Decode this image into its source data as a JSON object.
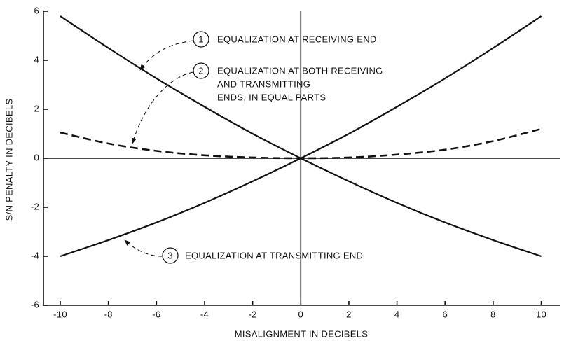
{
  "chart_data": {
    "type": "line",
    "x_label": "MISALIGNMENT IN DECIBELS",
    "y_label": "S/N PENALTY IN DECIBELS",
    "xlim": [
      -10.7,
      10.8
    ],
    "ylim": [
      -6,
      6
    ],
    "xticks": [
      -10,
      -8,
      -6,
      -4,
      -2,
      0,
      2,
      4,
      6,
      8,
      10
    ],
    "yticks": [
      -6,
      -4,
      -2,
      0,
      2,
      4,
      6
    ],
    "color": "#111111",
    "series": [
      {
        "label": "1",
        "text": [
          "EQUALIZATION AT RECEIVING END"
        ],
        "dashed": false,
        "x": [
          -10,
          -8,
          -6,
          -4,
          -2,
          0,
          2,
          4,
          6,
          8,
          10
        ],
        "values": [
          5.8,
          4.5,
          3.26,
          2.1,
          1.0,
          0,
          -0.94,
          -1.82,
          -2.62,
          -3.34,
          -4.0
        ]
      },
      {
        "label": "2",
        "text": [
          "EQUALIZATION AT BOTH RECEIVING",
          "AND TRANSMITTING",
          "ENDS, IN EQUAL PARTS"
        ],
        "dashed": true,
        "x": [
          -10,
          -8,
          -6,
          -4,
          -2,
          0,
          2,
          4,
          6,
          8,
          10
        ],
        "values": [
          1.05,
          0.6,
          0.3,
          0.12,
          0.03,
          0,
          0.03,
          0.15,
          0.35,
          0.7,
          1.2
        ]
      },
      {
        "label": "3",
        "text": [
          "EQUALIZATION AT TRANSMITTING END"
        ],
        "dashed": false,
        "x": [
          -10,
          -8,
          -6,
          -4,
          -2,
          0,
          2,
          4,
          6,
          8,
          10
        ],
        "values": [
          -4.0,
          -3.34,
          -2.62,
          -1.82,
          -0.94,
          0,
          1.0,
          2.1,
          3.26,
          4.5,
          5.8
        ]
      }
    ]
  }
}
